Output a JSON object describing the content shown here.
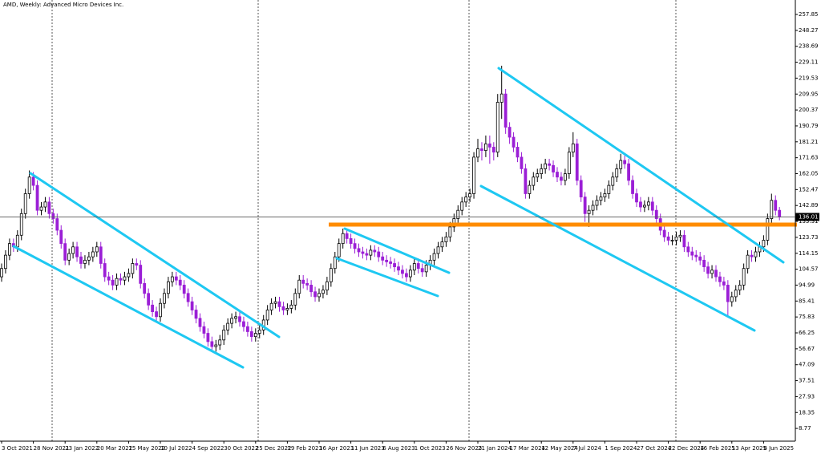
{
  "chart_data": {
    "type": "candlestick",
    "title": "AMD, Weekly:  Advanced Micro Devices Inc.",
    "up_color": "#ffffff",
    "down_color": "#9b1fd6",
    "outline_color": "#000000",
    "last_price": 136.01,
    "ylim": [
      1.1,
      266.54
    ],
    "yticks": [
      8.77,
      18.35,
      27.93,
      37.51,
      47.09,
      56.67,
      66.25,
      75.83,
      85.41,
      94.99,
      104.57,
      114.15,
      123.73,
      133.31,
      142.89,
      152.47,
      162.05,
      171.63,
      181.21,
      190.79,
      200.37,
      209.95,
      219.53,
      229.11,
      238.69,
      248.27,
      257.85
    ],
    "xticks": [
      {
        "value": 0,
        "label": "3 Oct 2021"
      },
      {
        "value": 8,
        "label": "28 Nov 2021"
      },
      {
        "value": 16,
        "label": "23 Jan 2022"
      },
      {
        "value": 24,
        "label": "20 Mar 2022"
      },
      {
        "value": 32,
        "label": "15 May 2022"
      },
      {
        "value": 40,
        "label": "10 Jul 2022"
      },
      {
        "value": 48,
        "label": "4 Sep 2022"
      },
      {
        "value": 56,
        "label": "30 Oct 2022"
      },
      {
        "value": 64,
        "label": "25 Dec 2022"
      },
      {
        "value": 72,
        "label": "19 Feb 2023"
      },
      {
        "value": 80,
        "label": "16 Apr 2023"
      },
      {
        "value": 88,
        "label": "11 Jun 2023"
      },
      {
        "value": 96,
        "label": "6 Aug 2023"
      },
      {
        "value": 104,
        "label": "1 Oct 2023"
      },
      {
        "value": 112,
        "label": "26 Nov 2023"
      },
      {
        "value": 120,
        "label": "21 Jan 2024"
      },
      {
        "value": 128,
        "label": "17 Mar 2024"
      },
      {
        "value": 136,
        "label": "12 May 2024"
      },
      {
        "value": 144,
        "label": "7 Jul 2024"
      },
      {
        "value": 152,
        "label": "1 Sep 2024"
      },
      {
        "value": 160,
        "label": "27 Oct 2024"
      },
      {
        "value": 168,
        "label": "22 Dec 2024"
      },
      {
        "value": 176,
        "label": "16 Feb 2025"
      },
      {
        "value": 184,
        "label": "13 Apr 2025"
      },
      {
        "value": 192,
        "label": "8 Jun 2025"
      }
    ],
    "open": [
      100,
      105,
      113,
      120,
      118,
      125,
      138,
      150,
      160,
      155,
      140,
      142,
      145,
      138,
      135,
      128,
      120,
      110,
      114,
      118,
      112,
      108,
      110,
      112,
      115,
      118,
      108,
      100,
      98,
      95,
      99,
      98,
      100,
      102,
      108,
      107,
      96,
      90,
      83,
      79,
      76,
      84,
      90,
      97,
      100,
      98,
      95,
      90,
      85,
      80,
      75,
      70,
      66,
      61,
      58,
      59,
      62,
      68,
      72,
      75,
      76,
      73,
      70,
      67,
      64,
      66,
      68,
      74,
      80,
      84,
      85,
      82,
      80,
      81,
      83,
      90,
      98,
      96,
      95,
      91,
      88,
      90,
      92,
      97,
      105,
      112,
      120,
      126,
      123,
      120,
      117,
      115,
      114,
      113,
      116,
      115,
      112,
      110,
      109,
      108,
      106,
      104,
      102,
      100,
      104,
      108,
      105,
      103,
      107,
      110,
      114,
      118,
      121,
      124,
      130,
      135,
      140,
      145,
      148,
      150,
      172,
      177,
      176,
      180,
      178,
      175,
      205,
      210,
      190,
      184,
      178,
      172,
      165,
      150,
      155,
      160,
      162,
      165,
      168,
      167,
      163,
      160,
      158,
      162,
      175,
      180,
      158,
      148,
      138,
      140,
      143,
      146,
      148,
      150,
      155,
      160,
      165,
      170,
      168,
      158,
      150,
      145,
      142,
      143,
      145,
      140,
      135,
      128,
      124,
      122,
      122,
      124,
      125,
      118,
      115,
      113,
      112,
      110,
      106,
      102,
      104,
      100,
      97,
      95,
      85,
      88,
      92,
      95,
      105,
      113,
      112,
      115,
      118,
      122,
      135,
      146,
      140
    ],
    "high": [
      108,
      116,
      123,
      123,
      128,
      141,
      153,
      164,
      163,
      158,
      145,
      148,
      148,
      141,
      138,
      131,
      123,
      117,
      121,
      121,
      115,
      113,
      115,
      118,
      121,
      121,
      111,
      103,
      101,
      102,
      102,
      103,
      105,
      111,
      111,
      110,
      99,
      93,
      86,
      82,
      87,
      93,
      100,
      103,
      103,
      101,
      98,
      93,
      88,
      83,
      78,
      73,
      69,
      64,
      62,
      65,
      71,
      75,
      78,
      79,
      79,
      76,
      73,
      70,
      69,
      71,
      77,
      83,
      87,
      88,
      88,
      85,
      84,
      86,
      93,
      101,
      101,
      99,
      98,
      94,
      93,
      95,
      100,
      108,
      115,
      123,
      129,
      129,
      126,
      123,
      120,
      118,
      117,
      119,
      119,
      118,
      115,
      113,
      112,
      111,
      109,
      107,
      105,
      107,
      111,
      111,
      108,
      110,
      113,
      117,
      121,
      124,
      127,
      133,
      138,
      143,
      148,
      151,
      153,
      175,
      183,
      181,
      185,
      185,
      181,
      210,
      227,
      213,
      193,
      187,
      181,
      175,
      168,
      158,
      163,
      165,
      168,
      171,
      171,
      170,
      166,
      163,
      165,
      178,
      187,
      183,
      161,
      151,
      143,
      146,
      149,
      151,
      153,
      158,
      163,
      168,
      174,
      173,
      171,
      161,
      153,
      148,
      146,
      148,
      148,
      143,
      138,
      131,
      127,
      125,
      127,
      128,
      128,
      121,
      118,
      116,
      115,
      113,
      109,
      107,
      107,
      103,
      100,
      98,
      91,
      95,
      98,
      108,
      116,
      116,
      118,
      121,
      125,
      138,
      150,
      149,
      142
    ],
    "low": [
      97,
      102,
      110,
      115,
      115,
      122,
      135,
      147,
      152,
      137,
      137,
      139,
      135,
      132,
      125,
      117,
      107,
      107,
      111,
      109,
      105,
      105,
      107,
      109,
      112,
      105,
      97,
      95,
      92,
      92,
      95,
      95,
      97,
      99,
      104,
      93,
      87,
      80,
      76,
      73,
      73,
      81,
      87,
      94,
      95,
      92,
      87,
      82,
      77,
      72,
      67,
      63,
      58,
      55,
      55,
      56,
      59,
      65,
      69,
      72,
      70,
      67,
      64,
      61,
      61,
      63,
      65,
      71,
      77,
      81,
      79,
      77,
      77,
      78,
      80,
      87,
      93,
      92,
      88,
      85,
      85,
      87,
      89,
      94,
      102,
      109,
      117,
      120,
      117,
      114,
      112,
      111,
      110,
      110,
      112,
      109,
      107,
      106,
      105,
      103,
      101,
      99,
      97,
      97,
      101,
      102,
      100,
      100,
      104,
      107,
      111,
      115,
      118,
      121,
      127,
      132,
      137,
      142,
      145,
      147,
      169,
      170,
      172,
      168,
      170,
      172,
      195,
      186,
      180,
      175,
      169,
      162,
      147,
      147,
      152,
      157,
      159,
      162,
      164,
      160,
      157,
      155,
      155,
      159,
      172,
      155,
      145,
      133,
      130,
      137,
      140,
      143,
      145,
      147,
      152,
      157,
      162,
      165,
      155,
      147,
      142,
      139,
      139,
      140,
      137,
      132,
      125,
      121,
      119,
      119,
      119,
      121,
      115,
      112,
      110,
      109,
      107,
      103,
      99,
      99,
      97,
      94,
      92,
      76,
      82,
      85,
      89,
      92,
      102,
      109,
      109,
      112,
      115,
      119,
      132,
      137,
      134
    ],
    "close": [
      105,
      113,
      120,
      118,
      125,
      138,
      150,
      160,
      155,
      140,
      142,
      145,
      138,
      135,
      128,
      120,
      110,
      114,
      118,
      112,
      108,
      110,
      112,
      115,
      118,
      108,
      100,
      98,
      95,
      99,
      98,
      100,
      102,
      108,
      107,
      96,
      90,
      83,
      79,
      76,
      84,
      90,
      97,
      100,
      98,
      95,
      90,
      85,
      80,
      75,
      70,
      66,
      61,
      58,
      59,
      62,
      68,
      72,
      75,
      76,
      73,
      70,
      67,
      64,
      66,
      68,
      74,
      80,
      84,
      85,
      82,
      80,
      81,
      83,
      90,
      98,
      96,
      95,
      91,
      88,
      90,
      92,
      97,
      105,
      112,
      120,
      126,
      123,
      120,
      117,
      115,
      114,
      113,
      116,
      115,
      112,
      110,
      109,
      108,
      106,
      104,
      102,
      100,
      104,
      108,
      105,
      103,
      107,
      110,
      114,
      118,
      121,
      124,
      130,
      135,
      140,
      145,
      148,
      150,
      172,
      177,
      176,
      180,
      178,
      175,
      205,
      210,
      190,
      184,
      178,
      172,
      165,
      150,
      155,
      160,
      162,
      165,
      168,
      167,
      163,
      160,
      158,
      162,
      175,
      180,
      158,
      148,
      138,
      140,
      143,
      146,
      148,
      150,
      155,
      160,
      165,
      170,
      168,
      158,
      150,
      145,
      142,
      143,
      145,
      140,
      135,
      128,
      124,
      122,
      122,
      124,
      125,
      118,
      115,
      113,
      112,
      110,
      106,
      102,
      104,
      100,
      97,
      95,
      85,
      88,
      92,
      95,
      105,
      113,
      112,
      115,
      118,
      122,
      135,
      146,
      140,
      136.01
    ]
  }
}
